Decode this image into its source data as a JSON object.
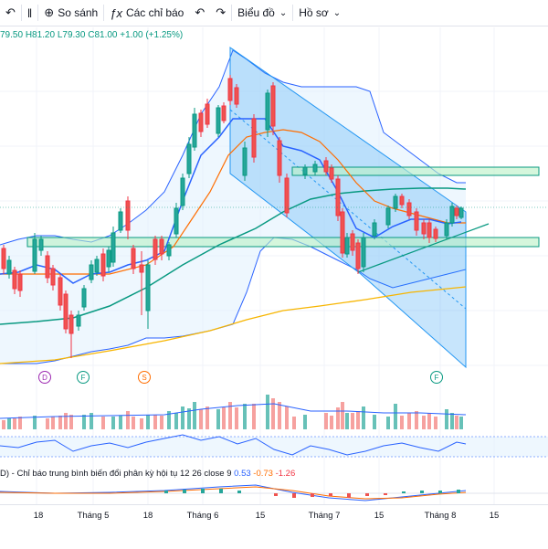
{
  "toolbar": {
    "symbol_icon": "candles-icon",
    "compare_label": "So sánh",
    "indicators_label": "Các chỉ báo",
    "chart_label": "Biểu đồ",
    "profile_label": "Hồ sơ"
  },
  "ohlc": {
    "o": "79.50",
    "h": "H81.20",
    "l": "L79.30",
    "c": "C81.00",
    "change": "+1.00 (+1.25%)"
  },
  "markers": [
    {
      "label": "D",
      "color": "#9c27b0"
    },
    {
      "label": "F",
      "color": "#089981"
    },
    {
      "label": "S",
      "color": "#ff6d00"
    },
    {
      "label": "F",
      "color": "#089981"
    }
  ],
  "indicator": {
    "prefix": "D) - Chỉ báo trung bình biến đổi phân kỳ hội tụ 12 26 close 9",
    "v1": "0.53",
    "v2": "-0.73",
    "v3": "-1.26"
  },
  "timeaxis": {
    "ticks": [
      "18",
      "Tháng 5",
      "18",
      "Tháng 6",
      "15",
      "Tháng 7",
      "15",
      "Tháng 8",
      "15"
    ]
  },
  "colors": {
    "up": "#26a69a",
    "down": "#ef5350",
    "band": "#2962ff",
    "ma_green": "#089981",
    "ma_orange": "#ff6d00",
    "ma_yellow": "#f7b500"
  }
}
